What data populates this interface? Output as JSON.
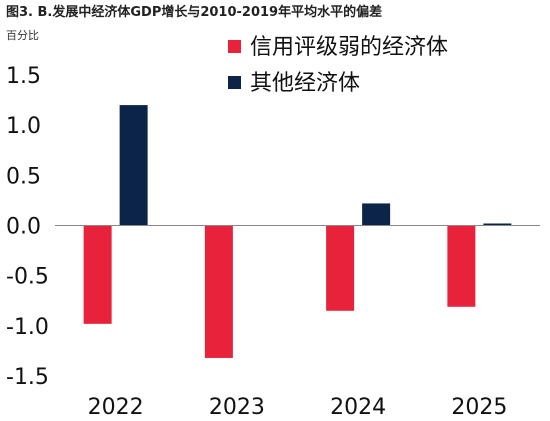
{
  "chart_data": {
    "type": "bar",
    "title": "图3. B.发展中经济体GDP增长与2010-2019年平均水平的偏差",
    "unit_label": "百分比",
    "categories": [
      "2022",
      "2023",
      "2024",
      "2025"
    ],
    "series": [
      {
        "name": "信用评级弱的经济体",
        "color": "#e8223a",
        "values": [
          -0.98,
          -1.32,
          -0.85,
          -0.81
        ]
      },
      {
        "name": "其他经济体",
        "color": "#0b2447",
        "values": [
          1.2,
          0.0,
          0.22,
          0.02
        ]
      }
    ],
    "y_ticks": [
      "1.5",
      "1.0",
      "0.5",
      "0.0",
      "-0.5",
      "-1.0",
      "-1.5"
    ],
    "ylim": [
      -1.5,
      1.5
    ],
    "grid": false,
    "legend_position": "top-right"
  }
}
